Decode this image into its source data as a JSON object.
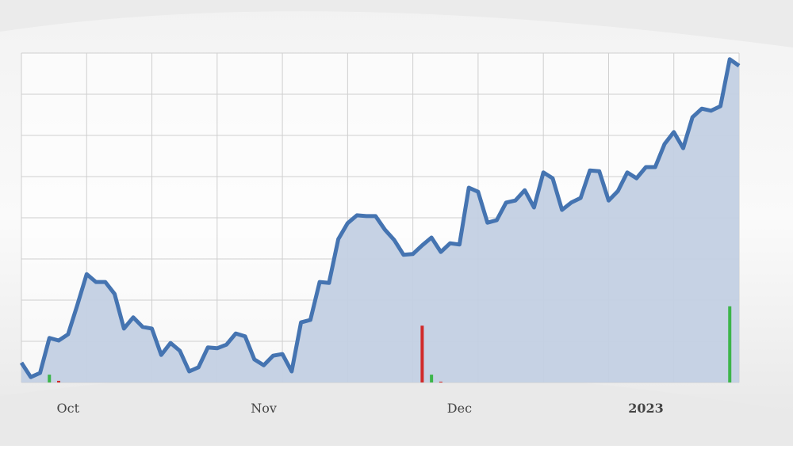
{
  "chart_data": {
    "type": "area",
    "categories": [
      null,
      null,
      null,
      null,
      null,
      "Oct",
      null,
      null,
      null,
      null,
      null,
      null,
      null,
      null,
      null,
      null,
      null,
      null,
      null,
      null,
      null,
      null,
      null,
      null,
      null,
      null,
      "Nov",
      null,
      null,
      null,
      null,
      null,
      null,
      null,
      null,
      null,
      null,
      null,
      null,
      null,
      null,
      null,
      null,
      null,
      null,
      null,
      null,
      "Dec",
      null,
      null,
      null,
      null,
      null,
      null,
      null,
      null,
      null,
      null,
      null,
      null,
      null,
      null,
      null,
      null,
      null,
      null,
      null,
      "2023",
      null,
      null,
      null,
      null,
      null,
      null,
      null,
      null,
      null,
      null
    ],
    "series": [
      {
        "color": "#4574b1",
        "fill": "#c3d0e3",
        "values": [
          0.48,
          0.13,
          0.23,
          1.08,
          1.02,
          1.17,
          1.88,
          2.63,
          2.44,
          2.44,
          2.15,
          1.31,
          1.58,
          1.35,
          1.31,
          0.67,
          0.96,
          0.77,
          0.27,
          0.37,
          0.85,
          0.83,
          0.92,
          1.19,
          1.12,
          0.56,
          0.42,
          0.65,
          0.69,
          0.27,
          1.46,
          1.52,
          2.44,
          2.42,
          3.48,
          3.87,
          4.06,
          4.04,
          4.04,
          3.71,
          3.46,
          3.1,
          3.12,
          3.33,
          3.52,
          3.17,
          3.38,
          3.35,
          4.73,
          4.63,
          3.88,
          3.94,
          4.37,
          4.42,
          4.67,
          4.25,
          5.1,
          4.96,
          4.19,
          4.37,
          4.48,
          5.15,
          5.13,
          4.42,
          4.65,
          5.1,
          4.96,
          5.23,
          5.23,
          5.79,
          6.08,
          5.69,
          6.44,
          6.65,
          6.6,
          6.71,
          7.85,
          7.69
        ]
      }
    ],
    "bars": [
      {
        "color": "#3cb54a",
        "values": [
          null,
          null,
          null,
          0.19,
          null,
          null,
          null,
          null,
          null,
          null,
          null,
          null,
          null,
          null,
          null,
          null,
          null,
          null,
          null,
          null,
          null,
          null,
          null,
          null,
          null,
          null,
          null,
          null,
          null,
          null,
          null,
          null,
          null,
          null,
          null,
          null,
          null,
          null,
          null,
          null,
          null,
          null,
          null,
          null,
          0.19,
          null,
          null,
          null,
          null,
          null,
          null,
          null,
          null,
          null,
          null,
          null,
          null,
          null,
          null,
          null,
          null,
          null,
          null,
          null,
          null,
          null,
          null,
          null,
          null,
          null,
          null,
          null,
          null,
          null,
          null,
          null,
          1.85,
          null
        ]
      },
      {
        "color": "#d12a2a",
        "values": [
          null,
          null,
          null,
          null,
          0.04,
          null,
          null,
          null,
          null,
          null,
          null,
          null,
          null,
          null,
          null,
          null,
          null,
          null,
          null,
          null,
          null,
          null,
          null,
          null,
          null,
          null,
          null,
          null,
          null,
          null,
          null,
          null,
          null,
          null,
          null,
          null,
          null,
          null,
          null,
          null,
          null,
          null,
          null,
          1.38,
          null,
          0.02,
          null,
          null,
          null,
          null,
          null,
          null,
          null,
          null,
          null,
          null,
          null,
          null,
          null,
          null,
          null,
          null,
          null,
          null,
          null,
          null,
          null,
          null,
          null,
          null,
          null,
          null,
          null,
          null,
          null,
          null,
          null,
          null
        ]
      }
    ],
    "ylim": [
      0,
      8
    ],
    "yticks": [
      0,
      1,
      2,
      3,
      4,
      5,
      6,
      7,
      8
    ],
    "grid": true
  }
}
